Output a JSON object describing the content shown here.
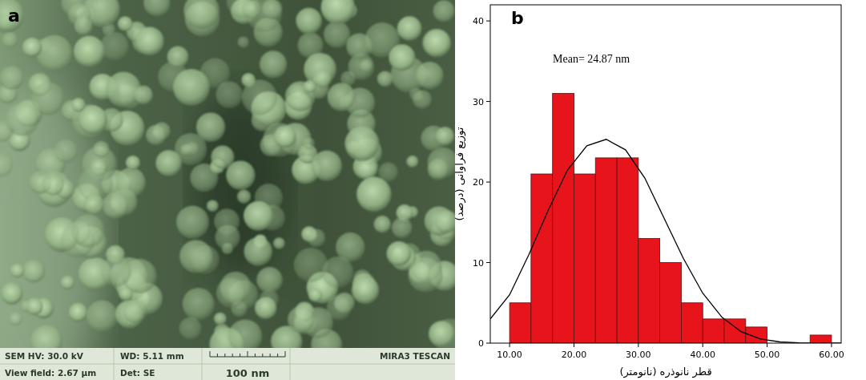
{
  "chart_data": {
    "type": "histogram",
    "panel_label": "b",
    "annotation": "Mean= 24.87 nm",
    "x_label": "قطر نانوذره (نانومتر)",
    "y_label": "توزیع فراوانی (درصد)",
    "bins": [
      10,
      13.33,
      16.67,
      20,
      23.33,
      26.67,
      30,
      33.33,
      36.67,
      40,
      43.33,
      46.67,
      50,
      53.33,
      56.67,
      60
    ],
    "values": [
      5,
      21,
      31,
      21,
      23,
      23,
      13,
      10,
      5,
      3,
      3,
      2,
      0,
      0,
      1
    ],
    "color": "#e8141c",
    "xlim": [
      7,
      61.5
    ],
    "xticks": [
      {
        "value": 10,
        "label": "10.00"
      },
      {
        "value": 20,
        "label": "20.00"
      },
      {
        "value": 30,
        "label": "30.00"
      },
      {
        "value": 40,
        "label": "40.00"
      },
      {
        "value": 50,
        "label": "50.00"
      },
      {
        "value": 60,
        "label": "60.00"
      }
    ],
    "ylim": [
      0,
      42
    ],
    "yticks": [
      0,
      10,
      20,
      30,
      40
    ],
    "fit_line": {
      "x": [
        7,
        10,
        13,
        16,
        19,
        22,
        25,
        28,
        31,
        34,
        37,
        40,
        43,
        46,
        49,
        52,
        55,
        58,
        61.5
      ],
      "values": [
        3,
        6,
        11,
        16.5,
        21.5,
        24.5,
        25.3,
        24,
        20.5,
        15.5,
        10.5,
        6.2,
        3.2,
        1.4,
        0.5,
        0.15,
        0.03,
        0,
        0
      ],
      "color": "#000000"
    }
  },
  "sem_image": {
    "panel_label": "a",
    "hv": "SEM HV: 30.0 kV",
    "wd": "WD: 5.11 mm",
    "instrument": "MIRA3 TESCAN",
    "view_field": "View field: 2.67 µm",
    "detector": "Det: SE",
    "scale_bar": "100 nm"
  }
}
